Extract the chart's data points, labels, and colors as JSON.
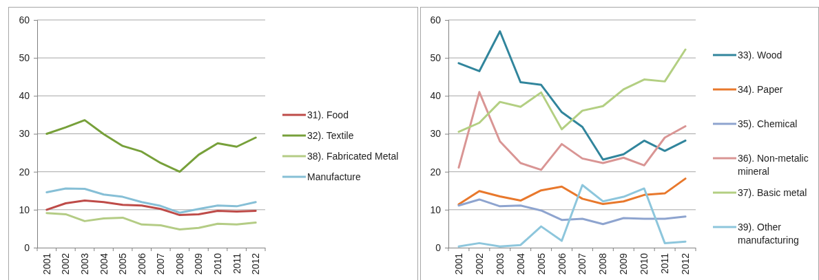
{
  "chart_data": [
    {
      "type": "line",
      "categories": [
        "2001",
        "2002",
        "2003",
        "2004",
        "2005",
        "2006",
        "2007",
        "2008",
        "2009",
        "2010",
        "2011",
        "2012"
      ],
      "ylim": [
        0,
        60
      ],
      "yticks": [
        0,
        10,
        20,
        30,
        40,
        50,
        60
      ],
      "grid": "y",
      "legend": "right",
      "marker": "none",
      "line_style": "solid",
      "series": [
        {
          "name": "31). Food",
          "color": "#be4b48",
          "values": [
            10,
            11.7,
            12.4,
            12,
            11.3,
            11.1,
            10.2,
            8.6,
            8.8,
            9.7,
            9.5,
            9.7
          ]
        },
        {
          "name": "32). Textile",
          "color": "#77a03a",
          "values": [
            30,
            31.7,
            33.6,
            29.9,
            26.8,
            25.3,
            22.3,
            20,
            24.5,
            27.5,
            26.6,
            29
          ]
        },
        {
          "name": "38). Fabricated Metal",
          "color": "#b4cc85",
          "values": [
            9.1,
            8.8,
            7,
            7.7,
            7.9,
            6.1,
            5.9,
            4.8,
            5.2,
            6.3,
            6.1,
            6.6
          ]
        },
        {
          "name": "Manufacture",
          "color": "#86bfd6",
          "values": [
            14.6,
            15.6,
            15.5,
            14,
            13.4,
            12,
            11,
            9.2,
            10.2,
            11.1,
            10.9,
            12
          ]
        }
      ]
    },
    {
      "type": "line",
      "categories": [
        "2001",
        "2002",
        "2003",
        "2004",
        "2005",
        "2006",
        "2007",
        "2008",
        "2009",
        "2010",
        "2011",
        "2012"
      ],
      "ylim": [
        0,
        60
      ],
      "yticks": [
        0,
        10,
        20,
        30,
        40,
        50,
        60
      ],
      "grid": "y",
      "legend": "right",
      "marker": "none",
      "line_style": "solid",
      "series": [
        {
          "name": "33). Wood",
          "color": "#31859c",
          "values": [
            48.6,
            46.5,
            57,
            43.6,
            42.9,
            35.7,
            31.8,
            23.2,
            24.6,
            28.2,
            25.5,
            28.2
          ]
        },
        {
          "name": "34). Paper",
          "color": "#e8782c",
          "values": [
            11.4,
            14.9,
            13.5,
            12.4,
            15.1,
            16.1,
            12.9,
            11.5,
            12.2,
            13.9,
            14.3,
            18.2
          ]
        },
        {
          "name": "35). Chemical",
          "color": "#8ea4cf",
          "values": [
            11.1,
            12.7,
            10.9,
            11.1,
            9.8,
            7.3,
            7.6,
            6.2,
            7.8,
            7.6,
            7.6,
            8.2
          ]
        },
        {
          "name": "36). Non-metalic mineral",
          "color": "#d99594",
          "values": [
            21.1,
            41,
            28,
            22.3,
            20.5,
            27.3,
            23.5,
            22.3,
            23.7,
            21.7,
            29,
            32
          ]
        },
        {
          "name": "37). Basic metal",
          "color": "#b3cf82",
          "values": [
            30.5,
            32.9,
            38.4,
            37.1,
            40.9,
            31.2,
            36.1,
            37.3,
            41.7,
            44.3,
            43.8,
            52.2
          ]
        },
        {
          "name": "39). Other manufacturing",
          "color": "#8dc6dc",
          "values": [
            0.3,
            1.2,
            0.3,
            0.7,
            5.6,
            1.8,
            16.5,
            12.2,
            13.4,
            15.6,
            1.2,
            1.6
          ]
        }
      ]
    }
  ]
}
